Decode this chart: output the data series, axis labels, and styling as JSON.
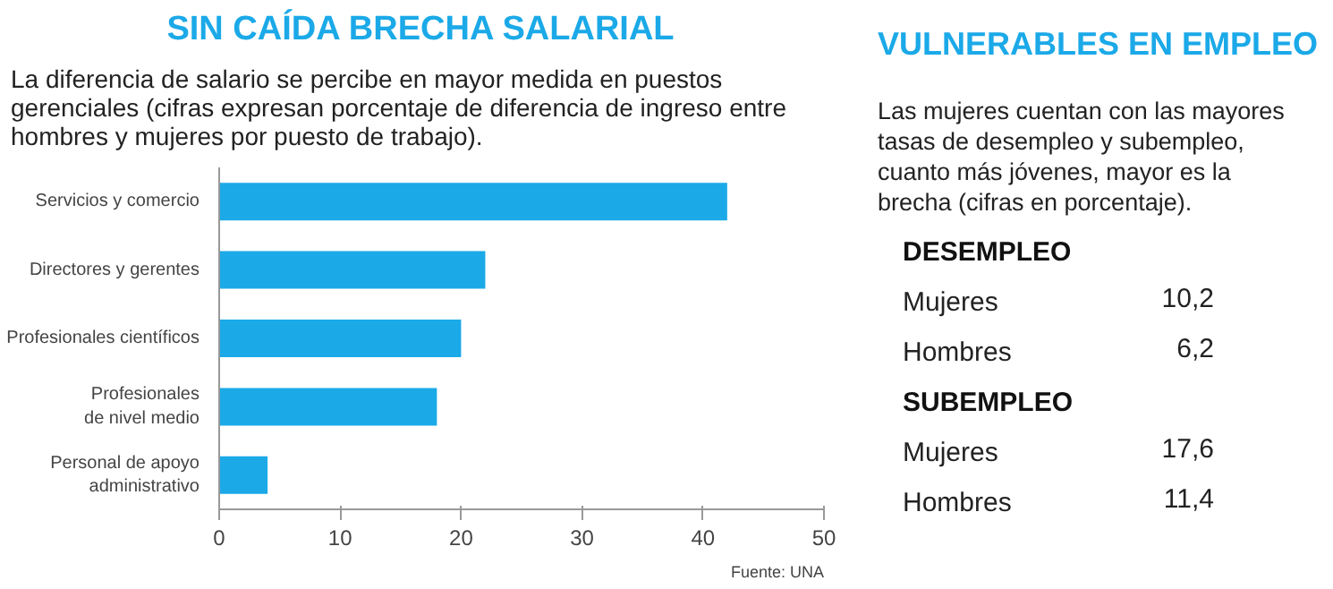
{
  "chart_data": [
    {
      "type": "bar",
      "orientation": "horizontal",
      "title": "SIN CAÍDA BRECHA SALARIAL",
      "subtitle": "La diferencia de salario se percibe en mayor medida en puestos gerenciales (cifras expresan porcentaje de diferencia de ingreso entre hombres y mujeres por puesto de trabajo).",
      "categories": [
        "Servicios y comercio",
        "Directores y gerentes",
        "Profesionales científicos",
        "Profesionales\nde nivel medio",
        "Personal de apoyo\nadministrativo"
      ],
      "values": [
        42,
        22,
        20,
        18,
        4
      ],
      "color": "#1ba9e8",
      "xlim": [
        0,
        50
      ],
      "xticks": [
        0,
        10,
        20,
        30,
        40,
        50
      ],
      "grid": false,
      "annotations": [
        "Fuente: UNA"
      ]
    },
    {
      "type": "other",
      "title": "VULNERABLES EN EMPLEO",
      "subtitle": "Las mujeres cuentan con las mayores tasas de desempleo y subempleo, cuanto más jóvenes, mayor es la brecha (cifras en porcentaje).",
      "annotations": [
        "DESEMPLEO",
        "Mujeres",
        "10,2",
        "Hombres",
        "6,2",
        "SUBEMPLEO",
        "Mujeres",
        "17,6",
        "Hombres",
        "11,4"
      ]
    }
  ]
}
